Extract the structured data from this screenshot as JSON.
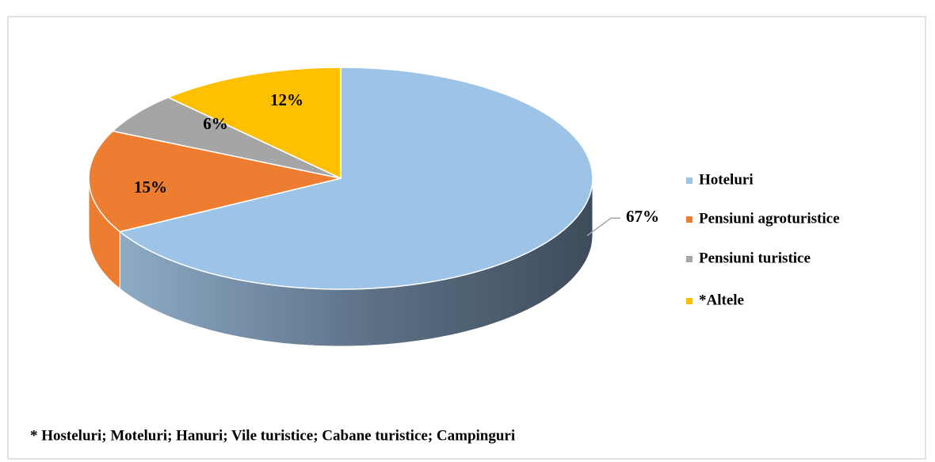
{
  "chart_data": {
    "type": "pie",
    "categories": [
      "Hoteluri",
      "Pensiuni agroturistice",
      "Pensiuni turistice",
      "*Altele"
    ],
    "values": [
      67,
      15,
      6,
      12
    ],
    "value_labels": [
      "67%",
      "15%",
      "6%",
      "12%"
    ],
    "colors": [
      "#9dc3e6",
      "#ed7d31",
      "#a5a5a5",
      "#ffc000"
    ],
    "legend": "right",
    "footnote": "* Hosteluri; Moteluri; Hanuri; Vile turistice; Cabane turistice; Campinguri"
  }
}
